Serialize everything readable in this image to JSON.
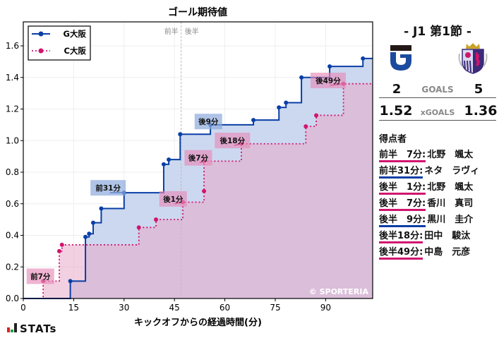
{
  "chart_data": {
    "type": "line",
    "subtype": "step",
    "title": "ゴール期待値",
    "xlabel": "キックオフからの経過時間(分)",
    "ylabel": "",
    "xlim": [
      0,
      104
    ],
    "ylim": [
      0,
      1.75
    ],
    "x_ticks": [
      0,
      15,
      30,
      45,
      60,
      75,
      90
    ],
    "y_ticks": [
      0.0,
      0.2,
      0.4,
      0.6,
      0.8,
      1.0,
      1.2,
      1.4,
      1.6
    ],
    "y_tick_labels": [
      "0.0",
      "0.2",
      "0.4",
      "0.6",
      "0.8",
      "1.0",
      "1.2",
      "1.4",
      "1.6"
    ],
    "grid": true,
    "legend_position": "upper left",
    "halftime_marker": {
      "x": 47,
      "labels": [
        "前半",
        "後半"
      ]
    },
    "watermark": "© SPORTERIA",
    "series": [
      {
        "name": "G大阪",
        "color": "#0a3fa6",
        "fill": "#c9d6ee",
        "line_style": "solid",
        "points": [
          [
            0,
            0
          ],
          [
            14.0,
            0.11
          ],
          [
            18.5,
            0.39
          ],
          [
            19.6,
            0.41
          ],
          [
            20.8,
            0.48
          ],
          [
            23.2,
            0.57
          ],
          [
            30.0,
            0.67
          ],
          [
            41.8,
            0.85
          ],
          [
            43.3,
            0.88
          ],
          [
            46.7,
            1.04
          ],
          [
            55.7,
            1.1
          ],
          [
            68.5,
            1.13
          ],
          [
            76.1,
            1.21
          ],
          [
            78.2,
            1.24
          ],
          [
            82.8,
            1.4
          ],
          [
            91.2,
            1.47
          ],
          [
            101.1,
            1.52
          ]
        ],
        "end_x": 104,
        "goals": [
          {
            "label": "前31分",
            "x": 30.0,
            "y": 0.67,
            "box_x": 20,
            "box_y": 0.75
          },
          {
            "label": "後9分",
            "x": 55.7,
            "y": 1.1,
            "box_x": 51,
            "box_y": 1.17
          }
        ]
      },
      {
        "name": "C大阪",
        "color": "#d0156e",
        "fill": "#f3c9dc",
        "line_style": "dotted",
        "points": [
          [
            0,
            0
          ],
          [
            5.9,
            0.11
          ],
          [
            10.7,
            0.3
          ],
          [
            11.5,
            0.34
          ],
          [
            34.4,
            0.45
          ],
          [
            39.5,
            0.5
          ],
          [
            47.5,
            0.61
          ],
          [
            53.8,
            0.68
          ],
          [
            53.8,
            0.87
          ],
          [
            64.9,
            0.98
          ],
          [
            84.1,
            1.09
          ],
          [
            87.2,
            1.16
          ],
          [
            95.3,
            1.36
          ]
        ],
        "end_x": 104,
        "goals": [
          {
            "label": "前7分",
            "x": 5.9,
            "y": 0.11,
            "box_x": 1,
            "box_y": 0.19
          },
          {
            "label": "後1分",
            "x": 47.5,
            "y": 0.61,
            "box_x": 40.5,
            "box_y": 0.68
          },
          {
            "label": "後7分",
            "x": 53.8,
            "y": 0.87,
            "box_x": 48,
            "box_y": 0.94
          },
          {
            "label": "後18分",
            "x": 64.9,
            "y": 0.98,
            "box_x": 57,
            "box_y": 1.05
          },
          {
            "label": "後49分",
            "x": 95.3,
            "y": 1.36,
            "box_x": 85.5,
            "box_y": 1.43
          }
        ]
      }
    ]
  },
  "chart": {
    "title": "ゴール期待値",
    "xlabel": "キックオフからの経過時間(分)",
    "half_first": "前半",
    "half_second": "後半",
    "watermark": "© SPORTERIA",
    "legend": [
      {
        "label": "G大阪"
      },
      {
        "label": "C大阪"
      }
    ]
  },
  "match": {
    "round": "- J1 第1節 -",
    "home_team": "G大阪",
    "away_team": "C大阪",
    "home_logo": "gamba-osaka-crest-icon",
    "away_logo": "cerezo-osaka-crest-icon",
    "goals_label": "GOALS",
    "home_goals": "2",
    "away_goals": "5",
    "xgoals_label": "xGOALS",
    "home_xg": "1.52",
    "away_xg": "1.36"
  },
  "scorers": {
    "title": "得点者",
    "items": [
      {
        "time": "前半　7分",
        "name": "北野　颯太",
        "team_color": "#d0156e"
      },
      {
        "time": "前半31分",
        "name": "ネタ　ラヴィ",
        "team_color": "#0a3fa6"
      },
      {
        "time": "後半　1分",
        "name": "北野　颯太",
        "team_color": "#d0156e"
      },
      {
        "time": "後半　7分",
        "name": "香川　真司",
        "team_color": "#d0156e"
      },
      {
        "time": "後半　9分",
        "name": "黒川　圭介",
        "team_color": "#0a3fa6"
      },
      {
        "time": "後半18分",
        "name": "田中　駿汰",
        "team_color": "#d0156e"
      },
      {
        "time": "後半49分",
        "name": "中島　元彦",
        "team_color": "#d0156e"
      }
    ]
  },
  "footer": {
    "brand": "STATs"
  }
}
